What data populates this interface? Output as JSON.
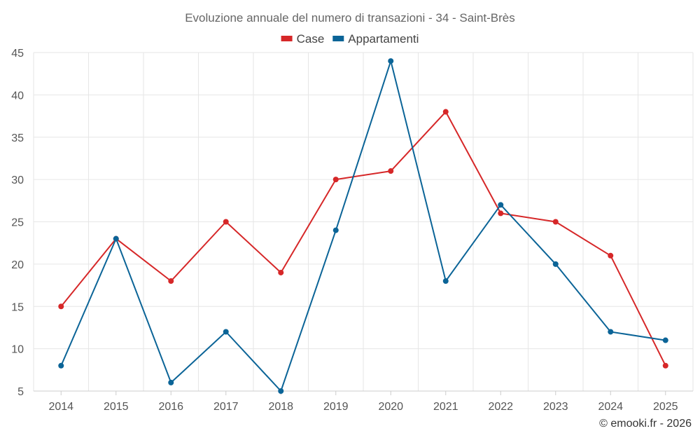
{
  "chart_data": {
    "type": "line",
    "title": "Evoluzione annuale del numero di transazioni - 34 - Saint-Brès",
    "categories": [
      "2014",
      "2015",
      "2016",
      "2017",
      "2018",
      "2019",
      "2020",
      "2021",
      "2022",
      "2023",
      "2024",
      "2025"
    ],
    "series": [
      {
        "name": "Case",
        "color": "#d62728",
        "values": [
          15,
          23,
          18,
          25,
          19,
          30,
          31,
          38,
          26,
          25,
          21,
          8
        ]
      },
      {
        "name": "Appartamenti",
        "color": "#0b6497",
        "values": [
          8,
          23,
          6,
          12,
          5,
          24,
          44,
          18,
          27,
          20,
          12,
          11
        ]
      }
    ],
    "yticks": [
      5,
      10,
      15,
      20,
      25,
      30,
      35,
      40,
      45
    ],
    "ylim": [
      5,
      45
    ],
    "xlabel": "",
    "ylabel": "",
    "grid": true,
    "legend": "top-center"
  },
  "credit": "© emooki.fr - 2026"
}
